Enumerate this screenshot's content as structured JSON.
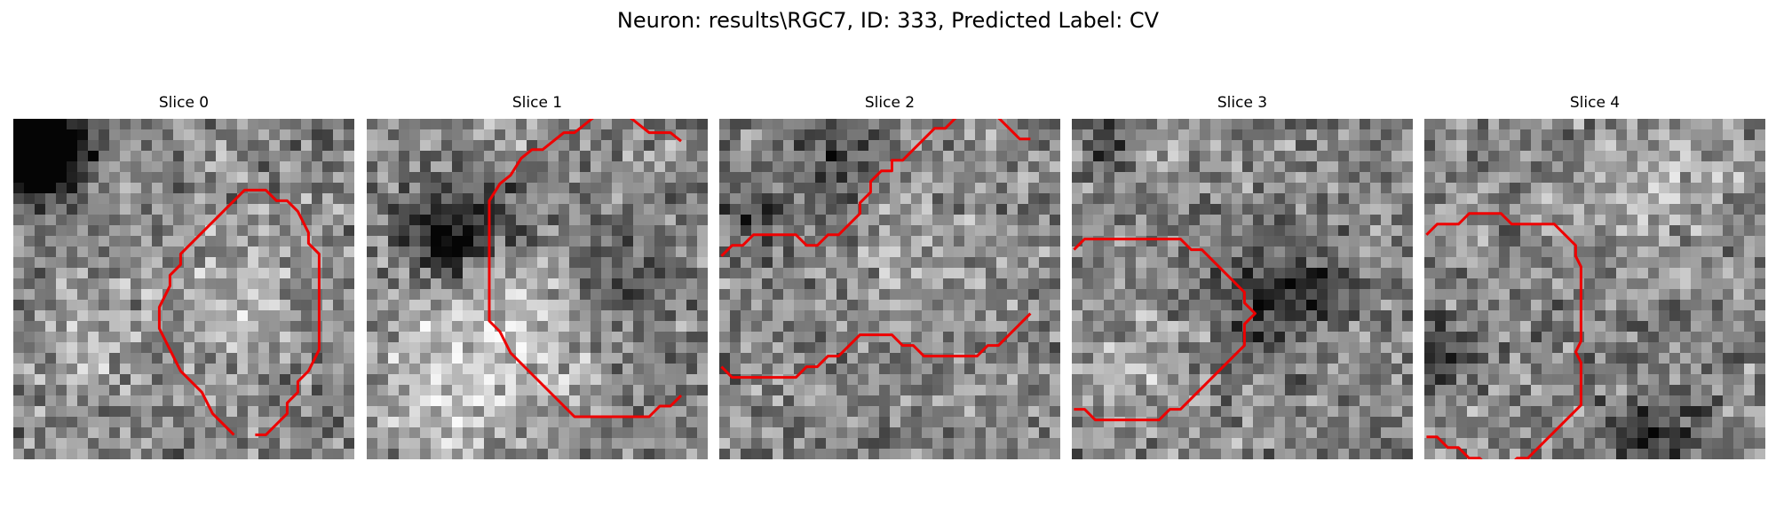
{
  "figure": {
    "title": "Neuron: results\\RGC7, ID: 333, Predicted Label: CV"
  },
  "contour_color": "#ee0000",
  "panels": [
    {
      "title": "Slice 0",
      "seed": 11,
      "dark_spots": [
        [
          2.5,
          2.5,
          3.2,
          0.55
        ],
        [
          1.5,
          1.5,
          2.2,
          0.4
        ],
        [
          0.5,
          4.5,
          2.5,
          0.3
        ]
      ],
      "bright_spots": [
        [
          20.5,
          16.5,
          4.5,
          0.18
        ],
        [
          6.5,
          19.5,
          3.5,
          0.15
        ]
      ],
      "contour": [
        [
          20.7,
          29.2
        ],
        [
          18.7,
          27.2
        ],
        [
          17.7,
          25.2
        ],
        [
          15.7,
          23.2
        ],
        [
          14.7,
          21.2
        ],
        [
          13.7,
          19.2
        ],
        [
          13.7,
          18.2
        ],
        [
          13.7,
          17.2
        ],
        [
          14.7,
          15.2
        ],
        [
          14.7,
          14.2
        ],
        [
          15.7,
          13.2
        ],
        [
          15.7,
          12.2
        ],
        [
          16.7,
          11.2
        ],
        [
          17.7,
          10.2
        ],
        [
          18.7,
          9.2
        ],
        [
          19.7,
          8.2
        ],
        [
          20.7,
          7.2
        ],
        [
          21.7,
          6.2
        ],
        [
          22.7,
          6.2
        ],
        [
          23.7,
          6.2
        ],
        [
          24.7,
          7.2
        ],
        [
          25.7,
          7.2
        ],
        [
          26.7,
          8.2
        ],
        [
          27.7,
          10.2
        ],
        [
          27.7,
          11.2
        ],
        [
          28.7,
          12.2
        ],
        [
          28.7,
          14.2
        ],
        [
          28.7,
          17.2
        ],
        [
          28.7,
          20.2
        ],
        [
          28.7,
          21.2
        ],
        [
          27.7,
          23.2
        ],
        [
          26.7,
          24.2
        ],
        [
          26.7,
          25.2
        ],
        [
          25.7,
          26.2
        ],
        [
          25.7,
          27.2
        ],
        [
          24.7,
          28.2
        ],
        [
          23.7,
          29.2
        ],
        [
          22.7,
          29.2
        ]
      ]
    },
    {
      "title": "Slice 1",
      "seed": 23,
      "dark_spots": [
        [
          6.5,
          10.5,
          2.6,
          0.55
        ],
        [
          12.5,
          8.5,
          3.5,
          0.22
        ],
        [
          23.5,
          14.5,
          3.5,
          0.2
        ]
      ],
      "bright_spots": [
        [
          7.5,
          23.5,
          5.5,
          0.25
        ],
        [
          15.5,
          18.5,
          5,
          0.18
        ],
        [
          12.5,
          1.5,
          4,
          0.12
        ]
      ],
      "contour": [
        [
          29.5,
          1.6
        ],
        [
          28.5,
          0.8
        ],
        [
          26.5,
          0.8
        ],
        [
          25.5,
          0
        ],
        [
          24.5,
          -0.8
        ],
        [
          22.5,
          -0.8
        ],
        [
          21.5,
          -0.8
        ],
        [
          20.5,
          0
        ],
        [
          19.5,
          0.8
        ],
        [
          18.5,
          0.8
        ],
        [
          17.5,
          1.6
        ],
        [
          16.5,
          2.4
        ],
        [
          15.5,
          2.4
        ],
        [
          14.5,
          3.2
        ],
        [
          13.5,
          4.8
        ],
        [
          12.5,
          5.6
        ],
        [
          11.5,
          7.2
        ],
        [
          11.5,
          8.0
        ],
        [
          11.5,
          9.6
        ],
        [
          11.5,
          14.5
        ],
        [
          11.5,
          18.5
        ],
        [
          12.5,
          19.5
        ],
        [
          13.5,
          21.5
        ],
        [
          14.5,
          22.5
        ],
        [
          16.5,
          24.5
        ],
        [
          17.5,
          25.5
        ],
        [
          18.5,
          26.5
        ],
        [
          19.5,
          27.5
        ],
        [
          21.5,
          27.5
        ],
        [
          24.5,
          27.5
        ],
        [
          26.5,
          27.5
        ],
        [
          27.5,
          26.5
        ],
        [
          28.5,
          26.5
        ],
        [
          29.5,
          25.5
        ]
      ]
    },
    {
      "title": "Slice 2",
      "seed": 37,
      "dark_spots": [
        [
          10.5,
          3.5,
          2.2,
          0.3
        ],
        [
          2.5,
          9.5,
          2.5,
          0.22
        ]
      ],
      "bright_spots": [
        [
          18.5,
          14.5,
          4.5,
          0.12
        ]
      ],
      "contour_segments": [
        [
          [
            0.2,
            12.4
          ],
          [
            1.2,
            11.4
          ],
          [
            2.2,
            11.4
          ],
          [
            3.2,
            10.4
          ],
          [
            5.2,
            10.4
          ],
          [
            7.2,
            10.4
          ],
          [
            8.2,
            11.4
          ],
          [
            9.2,
            11.4
          ],
          [
            10.2,
            10.4
          ],
          [
            11.2,
            10.4
          ],
          [
            12.2,
            9.4
          ],
          [
            13.2,
            8.4
          ],
          [
            13.2,
            7.4
          ],
          [
            14.2,
            6.4
          ],
          [
            14.2,
            5.4
          ],
          [
            15.2,
            4.4
          ],
          [
            16.2,
            4.4
          ],
          [
            16.2,
            3.4
          ],
          [
            17.2,
            3.4
          ],
          [
            18.2,
            2.4
          ],
          [
            19.2,
            1.4
          ],
          [
            20.2,
            0.4
          ],
          [
            21.2,
            0.4
          ],
          [
            22.2,
            -0.6
          ]
        ],
        [
          [
            26.2,
            -0.6
          ],
          [
            27.2,
            0.4
          ],
          [
            28.2,
            1.4
          ],
          [
            29.2,
            1.4
          ]
        ],
        [
          [
            0.2,
            22.8
          ],
          [
            1.2,
            23.8
          ],
          [
            3.2,
            23.8
          ],
          [
            5.2,
            23.8
          ],
          [
            7.2,
            23.8
          ],
          [
            8.2,
            22.8
          ],
          [
            9.2,
            22.8
          ],
          [
            10.2,
            21.8
          ],
          [
            11.2,
            21.8
          ],
          [
            12.2,
            20.8
          ],
          [
            13.2,
            19.8
          ],
          [
            15.2,
            19.8
          ],
          [
            16.2,
            19.8
          ],
          [
            17.2,
            20.8
          ],
          [
            18.2,
            20.8
          ],
          [
            19.2,
            21.8
          ],
          [
            21.2,
            21.8
          ],
          [
            23.2,
            21.8
          ],
          [
            24.2,
            21.8
          ],
          [
            25.2,
            20.8
          ],
          [
            26.2,
            20.8
          ],
          [
            27.2,
            19.8
          ],
          [
            28.2,
            18.8
          ],
          [
            29.2,
            17.8
          ]
        ]
      ]
    },
    {
      "title": "Slice 3",
      "seed": 53,
      "dark_spots": [
        [
          17.5,
          16.5,
          3.5,
          0.28
        ],
        [
          3.5,
          1.5,
          2.2,
          0.3
        ],
        [
          22.5,
          15.5,
          2.5,
          0.22
        ]
      ],
      "bright_spots": [
        [
          7.5,
          1.5,
          3,
          0.15
        ],
        [
          6.5,
          22.5,
          4,
          0.12
        ]
      ],
      "contour": [
        [
          0.2,
          11.8
        ],
        [
          1.2,
          10.8
        ],
        [
          3.2,
          10.8
        ],
        [
          6.2,
          10.8
        ],
        [
          8.2,
          10.8
        ],
        [
          10.2,
          10.8
        ],
        [
          11.2,
          11.8
        ],
        [
          12.2,
          11.8
        ],
        [
          13.2,
          12.8
        ],
        [
          14.2,
          13.8
        ],
        [
          15.2,
          14.8
        ],
        [
          16.2,
          15.8
        ],
        [
          16.2,
          16.8
        ],
        [
          17.2,
          17.8
        ],
        [
          16.2,
          18.8
        ],
        [
          16.2,
          20.8
        ],
        [
          15.2,
          21.8
        ],
        [
          14.2,
          22.8
        ],
        [
          13.2,
          23.8
        ],
        [
          12.2,
          24.8
        ],
        [
          11.2,
          25.8
        ],
        [
          10.2,
          26.8
        ],
        [
          9.2,
          26.8
        ],
        [
          8.2,
          27.8
        ],
        [
          6.2,
          27.8
        ],
        [
          5.2,
          27.8
        ],
        [
          4.2,
          27.8
        ],
        [
          3.2,
          27.8
        ],
        [
          2.2,
          27.8
        ],
        [
          1.2,
          26.8
        ],
        [
          0.2,
          26.8
        ]
      ]
    },
    {
      "title": "Slice 4",
      "seed": 71,
      "dark_spots": [
        [
          21.5,
          29.5,
          3.5,
          0.3
        ],
        [
          0.5,
          21.5,
          2.5,
          0.25
        ]
      ],
      "bright_spots": [
        [
          18.5,
          7.5,
          4,
          0.15
        ],
        [
          25.5,
          3.5,
          3,
          0.12
        ]
      ],
      "contour": [
        [
          0.2,
          10.4
        ],
        [
          1.2,
          9.4
        ],
        [
          2.2,
          9.4
        ],
        [
          3.2,
          9.4
        ],
        [
          4.2,
          8.4
        ],
        [
          5.2,
          8.4
        ],
        [
          7.2,
          8.4
        ],
        [
          8.2,
          9.4
        ],
        [
          10.2,
          9.4
        ],
        [
          12.2,
          9.4
        ],
        [
          13.2,
          10.4
        ],
        [
          14.2,
          11.4
        ],
        [
          14.2,
          12.4
        ],
        [
          14.7,
          13.4
        ],
        [
          14.7,
          15.4
        ],
        [
          14.7,
          18.4
        ],
        [
          14.7,
          20.4
        ],
        [
          14.2,
          21.4
        ],
        [
          14.7,
          22.4
        ],
        [
          14.7,
          24.4
        ],
        [
          14.7,
          26.4
        ],
        [
          13.7,
          27.4
        ],
        [
          12.7,
          28.4
        ],
        [
          11.7,
          29.4
        ],
        [
          10.7,
          30.4
        ],
        [
          9.7,
          31.4
        ],
        [
          8.7,
          31.4
        ],
        [
          7.7,
          32.4
        ],
        [
          6.2,
          32.4
        ],
        [
          5.2,
          31.4
        ],
        [
          4.2,
          31.4
        ],
        [
          3.2,
          30.4
        ],
        [
          2.2,
          30.4
        ],
        [
          1.2,
          29.4
        ],
        [
          0.2,
          29.4
        ]
      ]
    }
  ]
}
